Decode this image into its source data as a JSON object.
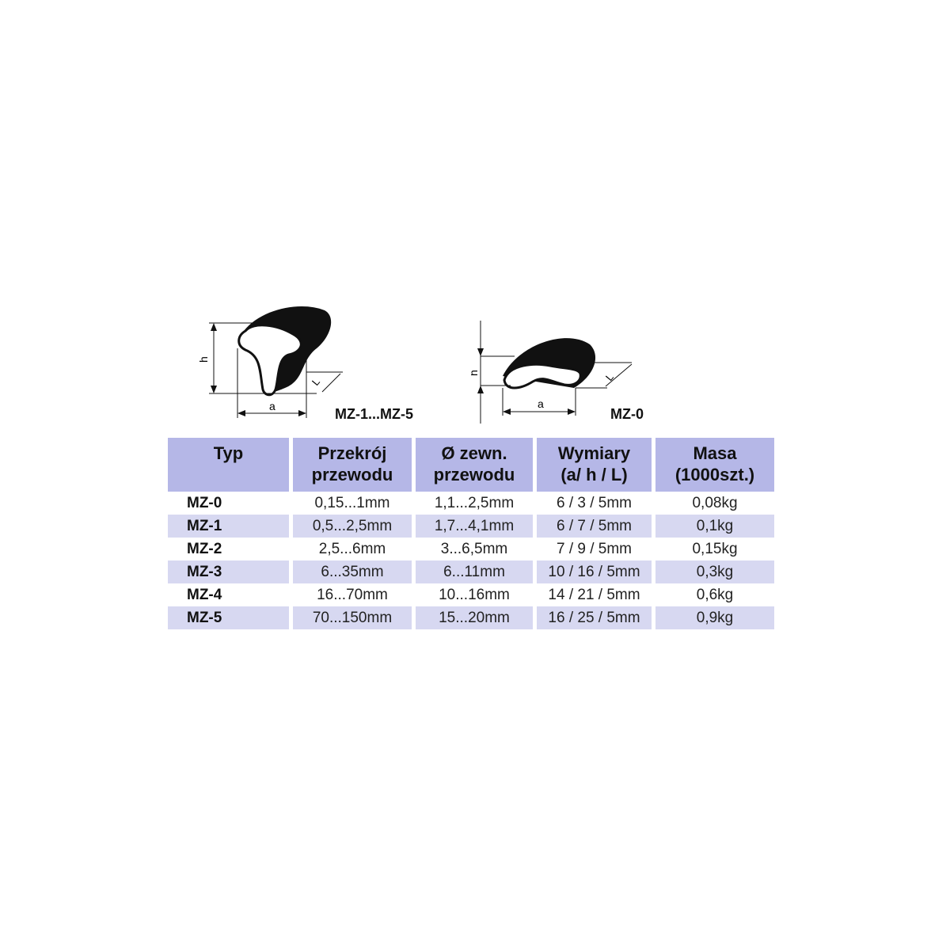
{
  "figures": [
    {
      "label": "MZ-1...MZ-5",
      "dims": [
        "h",
        "a",
        "L"
      ]
    },
    {
      "label": "MZ-0",
      "dims": [
        "h",
        "a",
        "L"
      ]
    }
  ],
  "table": {
    "headers": [
      [
        "Typ",
        ""
      ],
      [
        "Przekrój",
        "przewodu"
      ],
      [
        "Ø zewn.",
        "przewodu"
      ],
      [
        "Wymiary",
        "(a/ h / L)"
      ],
      [
        "Masa",
        "(1000szt.)"
      ]
    ],
    "rows": [
      [
        "MZ-0",
        "0,15...1mm",
        "1,1...2,5mm",
        "6 / 3 / 5mm",
        "0,08kg"
      ],
      [
        "MZ-1",
        "0,5...2,5mm",
        "1,7...4,1mm",
        "6 / 7 / 5mm",
        "0,1kg"
      ],
      [
        "MZ-2",
        "2,5...6mm",
        "3...6,5mm",
        "7 / 9 / 5mm",
        "0,15kg"
      ],
      [
        "MZ-3",
        "6...35mm",
        "6...11mm",
        "10 / 16 / 5mm",
        "0,3kg"
      ],
      [
        "MZ-4",
        "16...70mm",
        "10...16mm",
        "14 / 21 / 5mm",
        "0,6kg"
      ],
      [
        "MZ-5",
        "70...150mm",
        "15...20mm",
        "16 / 25 / 5mm",
        "0,9kg"
      ]
    ],
    "colors": {
      "header": "#b5b7e7",
      "alt_row": "#d7d8f1"
    }
  }
}
